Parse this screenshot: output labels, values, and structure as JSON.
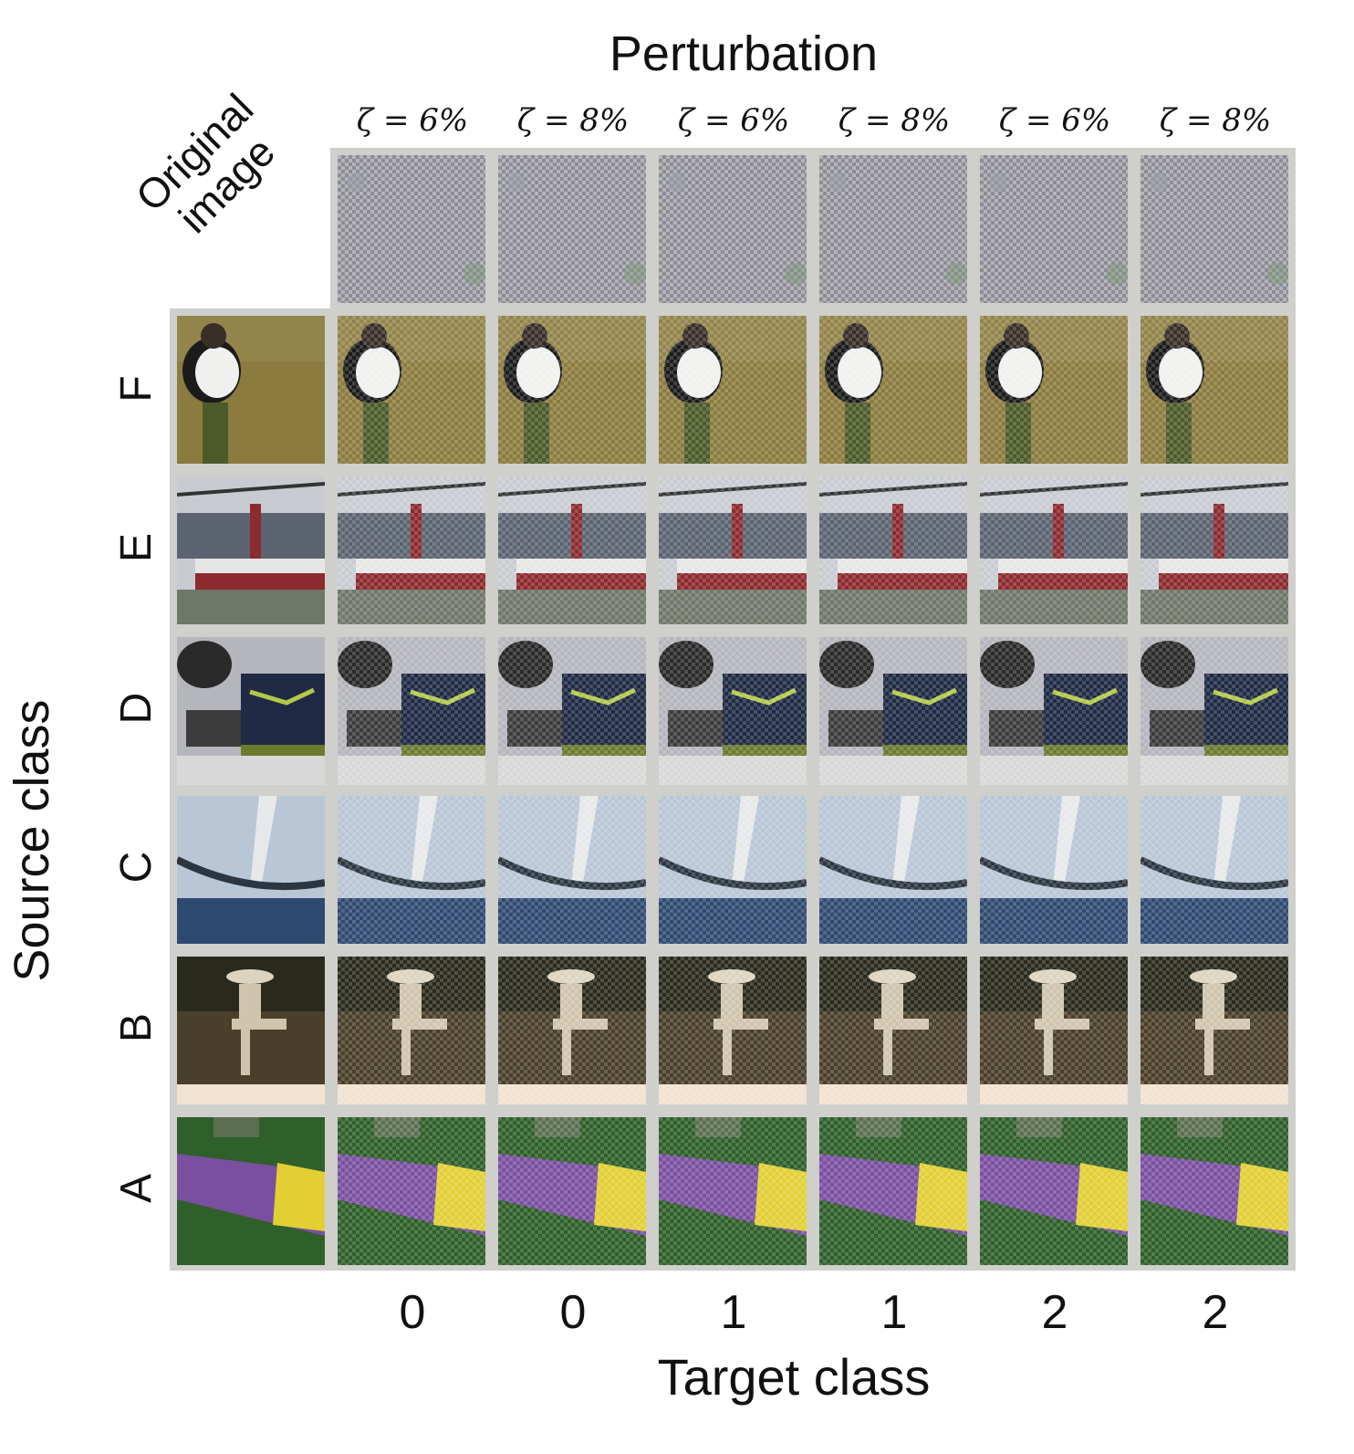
{
  "figure": {
    "title": "Perturbation",
    "original_label_line1": "Original",
    "original_label_line2": "image",
    "zeta_labels": [
      "ζ = 6%",
      "ζ = 8%",
      "ζ = 6%",
      "ζ = 8%",
      "ζ = 6%",
      "ζ = 8%"
    ],
    "row_labels": [
      "F",
      "E",
      "D",
      "C",
      "B",
      "A"
    ],
    "row_axis_label": "Source class",
    "target_classes": [
      "0",
      "0",
      "1",
      "1",
      "2",
      "2"
    ],
    "column_axis_label": "Target class"
  },
  "colors": {
    "panel_gray": "#cfcfcb",
    "perturbation_tile": "#8b8c95",
    "bird_background": "#8b7b3e",
    "ship_hull": "#8c2a2f",
    "train_body": "#1f2a44",
    "sky_blue": "#b9c6d6",
    "sea_blue": "#2f4a70",
    "sepia_ground": "#4a3f2a",
    "sleeping_bag_purple": "#7a4fa0",
    "sleeping_bag_yellow": "#e2cf34",
    "grass_green": "#2f5f2a"
  }
}
